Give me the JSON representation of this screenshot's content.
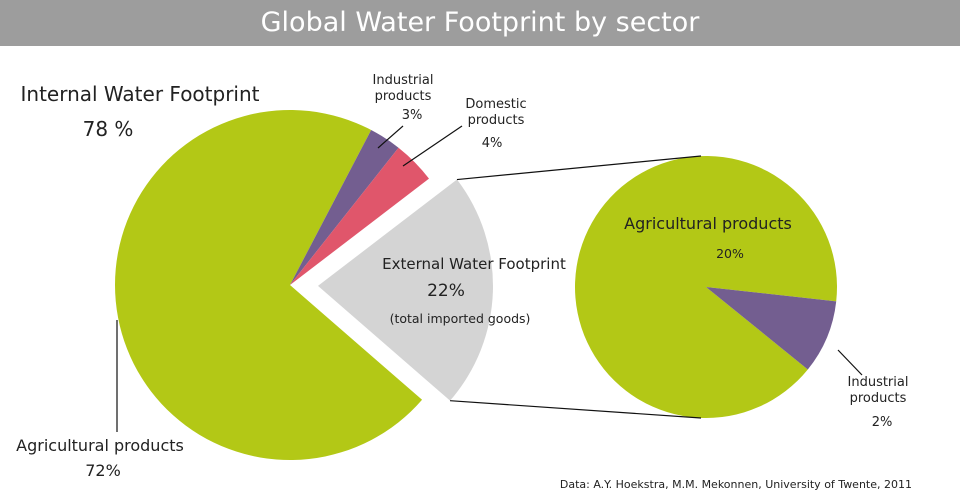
{
  "title": "Global Water Footprint by sector",
  "source": "Data:  A.Y. Hoekstra, M.M. Mekonnen, University of Twente, 2011",
  "chart_data": [
    {
      "type": "pie",
      "group": {
        "name": "Internal Water Footprint",
        "value": 78,
        "value_label": "78 %"
      },
      "categories": [
        "Agricultural products",
        "Industrial products",
        "Domestic products",
        "External Water Footprint"
      ],
      "values": [
        72,
        3,
        4,
        22
      ],
      "value_labels": [
        "72%",
        "3%",
        "4%",
        "22%"
      ],
      "colors": [
        "#b3c816",
        "#735e90",
        "#e0566b",
        "#d4d4d4"
      ],
      "annotation": "(total imported goods)"
    },
    {
      "type": "pie",
      "categories": [
        "Agricultural products",
        "Industrial products"
      ],
      "values": [
        20,
        2
      ],
      "value_labels": [
        "20%",
        "2%"
      ],
      "colors": [
        "#b3c816",
        "#735e90"
      ]
    }
  ]
}
